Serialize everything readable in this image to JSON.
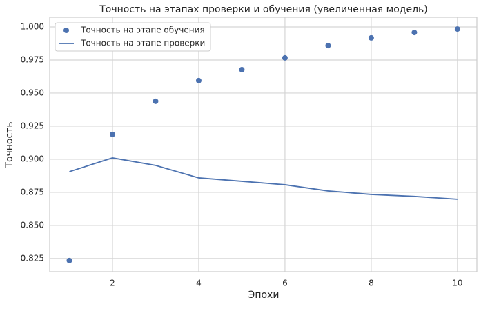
{
  "chart_data": {
    "type": "line",
    "title": "Точность на этапах проверки и обучения (увеличенная модель)",
    "xlabel": "Эпохи",
    "ylabel": "Точность",
    "x": [
      1,
      2,
      3,
      4,
      5,
      6,
      7,
      8,
      9,
      10
    ],
    "series": [
      {
        "name": "Точность на этапе обучения",
        "type": "scatter",
        "color": "#4c72b0",
        "values": [
          0.8234,
          0.9188,
          0.9438,
          0.9594,
          0.9677,
          0.9766,
          0.9859,
          0.9917,
          0.9958,
          0.9984
        ]
      },
      {
        "name": "Точность на этапе проверки",
        "type": "line",
        "color": "#4c72b0",
        "values": [
          0.8906,
          0.901,
          0.8953,
          0.8859,
          0.8833,
          0.8807,
          0.876,
          0.8734,
          0.8719,
          0.8698
        ]
      }
    ],
    "xlim": [
      0.544,
      10.45
    ],
    "ylim": [
      0.815,
      1.0073
    ],
    "xticks": [
      2,
      4,
      6,
      8,
      10
    ],
    "yticks": [
      0.825,
      {
        "value": 0.85,
        "label": "0.850"
      },
      0.875,
      {
        "value": 0.9,
        "label": "0.900"
      },
      0.925,
      {
        "value": 0.95,
        "label": "0.950"
      },
      0.975,
      {
        "value": 1,
        "label": "1.000"
      }
    ],
    "grid": true,
    "legend": "upper left"
  }
}
